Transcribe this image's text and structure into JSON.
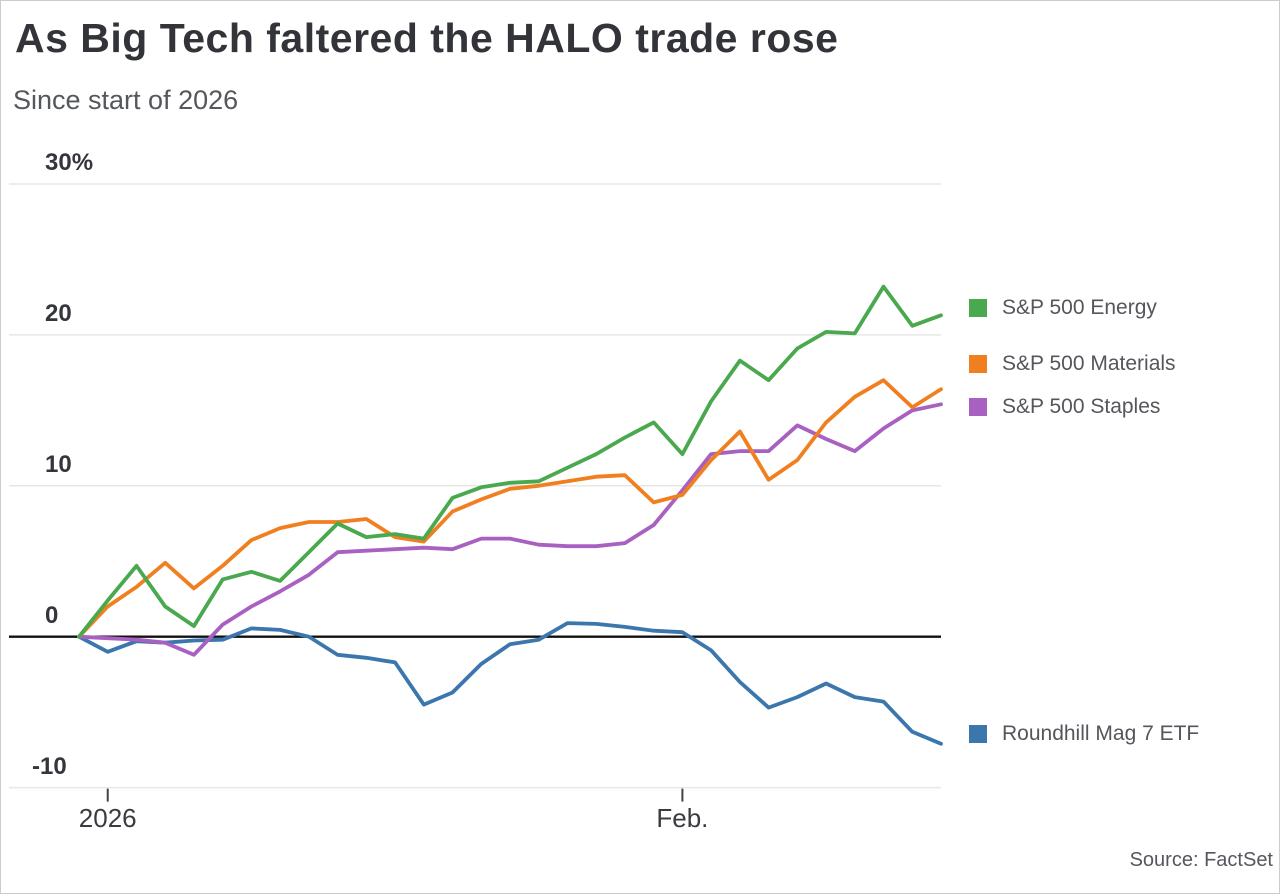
{
  "header": {
    "title": "As Big Tech faltered the HALO trade rose",
    "subtitle": "Since start of 2026"
  },
  "source": "Source: FactSet",
  "colors": {
    "energy_green": "#4aa84e",
    "materials_orange": "#f0801f",
    "staples_purple": "#a861c0",
    "mag7_blue": "#3b76ad",
    "zero_line": "#111111",
    "gridline": "#e7e7e7",
    "tick": "#444444"
  },
  "chart_data": {
    "type": "line",
    "title": "As Big Tech faltered the HALO trade rose",
    "subtitle": "Since start of 2026",
    "unit": "percent change since start of 2026",
    "grid": "horizontal",
    "legend_position": "right",
    "ylim": [
      -10,
      30
    ],
    "y_ticks": [
      {
        "label": "30%",
        "value": 30
      },
      {
        "label": "20",
        "value": 20
      },
      {
        "label": "10",
        "value": 10
      },
      {
        "label": "0",
        "value": 0
      },
      {
        "label": "-10",
        "value": -10
      }
    ],
    "x_ticks": [
      {
        "label": "2026",
        "index": 1
      },
      {
        "label": "Feb.",
        "index": 21
      }
    ],
    "n_points": 31,
    "series": [
      {
        "name": "S&P 500 Energy",
        "color": "#4aa84e",
        "values": [
          0,
          2.4,
          4.7,
          2.0,
          0.7,
          3.8,
          4.3,
          3.7,
          5.6,
          7.5,
          6.6,
          6.8,
          6.5,
          9.2,
          9.9,
          10.2,
          10.3,
          11.2,
          12.1,
          13.2,
          14.2,
          12.1,
          15.6,
          18.3,
          17.0,
          19.1,
          20.2,
          20.1,
          23.2,
          20.6,
          21.3
        ]
      },
      {
        "name": "S&P 500 Materials",
        "color": "#f0801f",
        "values": [
          0,
          2.0,
          3.3,
          4.9,
          3.2,
          4.7,
          6.4,
          7.2,
          7.6,
          7.6,
          7.8,
          6.6,
          6.3,
          8.3,
          9.1,
          9.8,
          10.0,
          10.3,
          10.6,
          10.7,
          8.9,
          9.4,
          11.7,
          13.6,
          10.4,
          11.7,
          14.2,
          15.9,
          17.0,
          15.2,
          16.4
        ]
      },
      {
        "name": "S&P 500 Staples",
        "color": "#a861c0",
        "values": [
          0,
          -0.1,
          -0.2,
          -0.4,
          -1.2,
          0.8,
          2.0,
          3.0,
          4.1,
          5.6,
          5.7,
          5.8,
          5.9,
          5.8,
          6.5,
          6.5,
          6.1,
          6.0,
          6.0,
          6.2,
          7.4,
          9.7,
          12.1,
          12.3,
          12.3,
          14.0,
          13.1,
          12.3,
          13.8,
          15.0,
          15.4
        ]
      },
      {
        "name": "Roundhill Mag 7 ETF",
        "color": "#3b76ad",
        "values": [
          0,
          -1.0,
          -0.3,
          -0.4,
          -0.25,
          -0.2,
          0.55,
          0.45,
          0.0,
          -1.2,
          -1.4,
          -1.7,
          -4.5,
          -3.7,
          -1.8,
          -0.5,
          -0.2,
          0.9,
          0.85,
          0.65,
          0.4,
          0.3,
          -0.9,
          -3.0,
          -4.7,
          -4.0,
          -3.1,
          -4.0,
          -4.3,
          -6.3,
          -7.1
        ]
      }
    ]
  }
}
